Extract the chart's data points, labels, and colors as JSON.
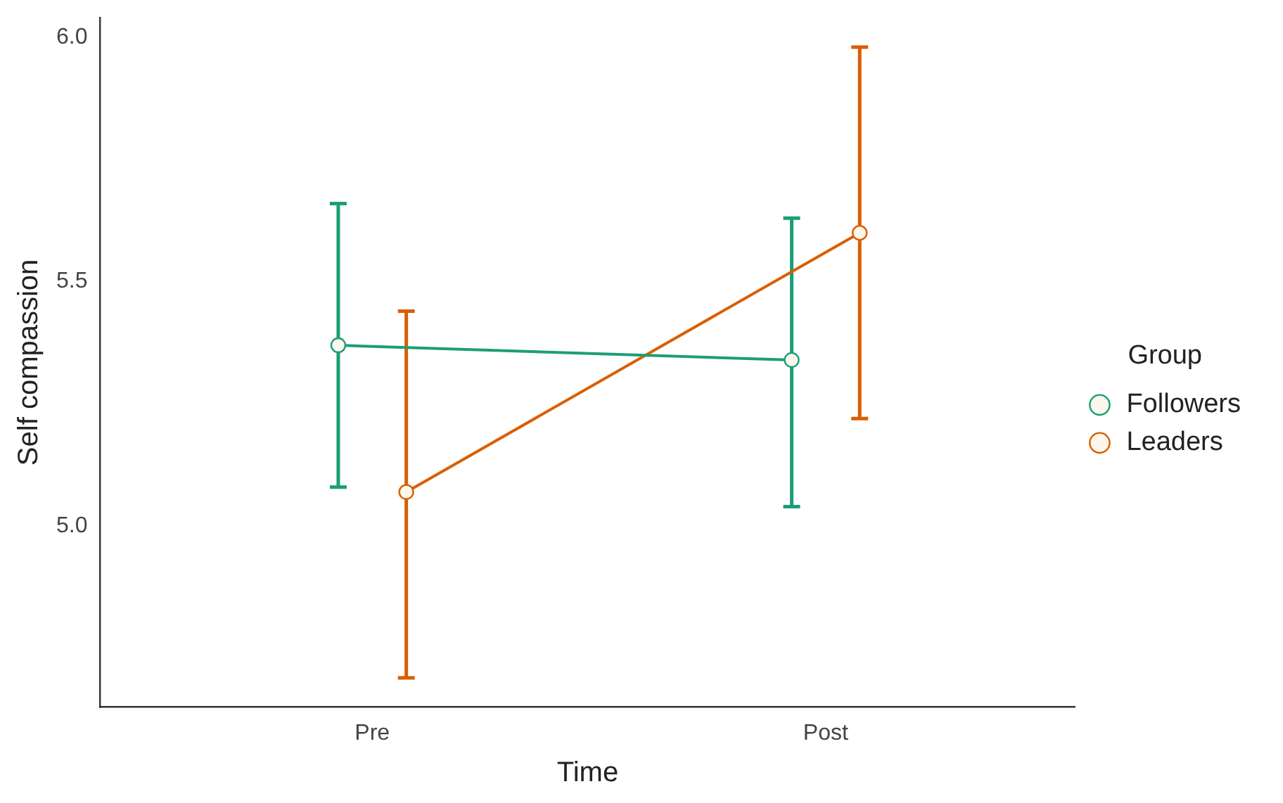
{
  "chart_data": {
    "type": "line",
    "xlabel": "Time",
    "ylabel": "Self compassion",
    "legend_title": "Group",
    "categories": [
      "Pre",
      "Post"
    ],
    "series": [
      {
        "name": "Followers",
        "color": "#1b9e77",
        "values": [
          5.37,
          5.34
        ],
        "errors": [
          [
            5.08,
            5.66
          ],
          [
            5.04,
            5.63
          ]
        ]
      },
      {
        "name": "Leaders",
        "color": "#d95f02",
        "values": [
          5.07,
          5.6
        ],
        "errors": [
          [
            4.69,
            5.44
          ],
          [
            5.22,
            5.98
          ]
        ]
      }
    ],
    "ylim": [
      4.63,
      6.04
    ],
    "yticks": [
      {
        "value": 5.0,
        "label": "5.0"
      },
      {
        "value": 5.5,
        "label": "5.5"
      },
      {
        "value": 6.0,
        "label": "6.0"
      }
    ],
    "grid": false,
    "legend": "right",
    "marker": "circle",
    "line_style": "solid"
  }
}
